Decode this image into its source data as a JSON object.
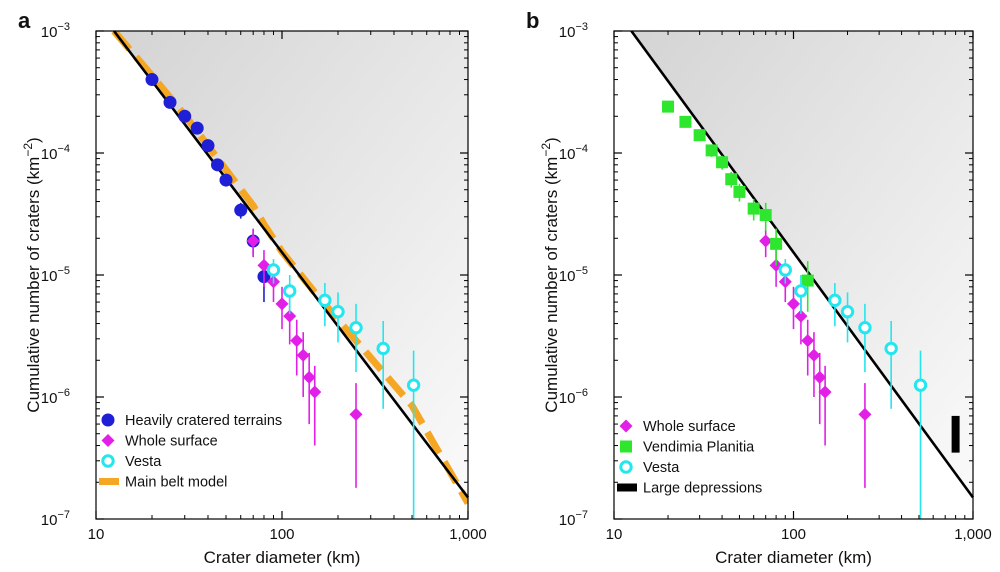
{
  "colors": {
    "heavily": "#1f1fd6",
    "whole": "#e11fe6",
    "vesta": "#23e6ee",
    "mainbelt": "#f5a623",
    "vendimia": "#2ee62e",
    "depressions": "#000000",
    "saturation": "#000000"
  },
  "chart_data": [
    {
      "type": "scatter",
      "panel_label": "a",
      "xlabel": "Crater diameter (km)",
      "ylabel": "Cumulative number of craters (km",
      "ylabel_sup": "−2",
      "ylabel_end": ")",
      "x_scale": "log",
      "y_scale": "log",
      "xlim": [
        10,
        1000
      ],
      "ylim": [
        1e-07,
        0.001
      ],
      "x_ticks": [
        10,
        100,
        1000
      ],
      "x_tick_labels": [
        "10",
        "100",
        "1,000"
      ],
      "y_ticks": [
        1e-07,
        1e-06,
        1e-05,
        0.0001,
        0.001
      ],
      "y_tick_mantissa": [
        "10",
        "10",
        "10",
        "10",
        "10"
      ],
      "y_tick_exponents": [
        "−7",
        "−6",
        "−5",
        "−4",
        "−3"
      ],
      "legend_position": "bottom-left",
      "saturation_line": {
        "x": [
          12.5,
          1000
        ],
        "y": [
          0.001,
          1.5e-07
        ]
      },
      "series": [
        {
          "name": "Heavily cratered terrains",
          "marker": "circle",
          "color_key": "heavily",
          "x": [
            20,
            25,
            30,
            35,
            40,
            45,
            50,
            60,
            70,
            80
          ],
          "y": [
            0.0004,
            0.00026,
            0.0002,
            0.00016,
            0.000115,
            8e-05,
            6e-05,
            3.4e-05,
            1.9e-05,
            9.7e-06
          ],
          "err_low": [
            0.00037,
            0.000245,
            0.000188,
            0.00015,
            0.000107,
            7.2e-05,
            5.4e-05,
            2.9e-05,
            1.45e-05,
            6e-06
          ],
          "err_high": [
            0.00043,
            0.000275,
            0.000212,
            0.00017,
            0.000123,
            8.8e-05,
            6.6e-05,
            3.9e-05,
            2.35e-05,
            1.3e-05
          ]
        },
        {
          "name": "Whole surface",
          "marker": "diamond",
          "color_key": "whole",
          "x": [
            70,
            80,
            90,
            100,
            110,
            120,
            130,
            140,
            150,
            250
          ],
          "y": [
            1.9e-05,
            1.2e-05,
            8.8e-06,
            5.8e-06,
            4.6e-06,
            2.9e-06,
            2.2e-06,
            1.45e-06,
            1.1e-06,
            7.2e-07
          ],
          "err_low": [
            1.4e-05,
            8e-06,
            6e-06,
            3.6e-06,
            2.7e-06,
            1.5e-06,
            1e-06,
            6e-07,
            4e-07,
            1.8e-07
          ],
          "err_high": [
            2.4e-05,
            1.6e-05,
            1.17e-05,
            8e-06,
            6.5e-06,
            4.3e-06,
            3.4e-06,
            2.3e-06,
            1.8e-06,
            1.3e-06
          ]
        },
        {
          "name": "Vesta",
          "marker": "ring",
          "color_key": "vesta",
          "x": [
            90,
            110,
            170,
            200,
            250,
            350,
            510
          ],
          "y": [
            1.1e-05,
            7.4e-06,
            6.2e-06,
            5e-06,
            3.7e-06,
            2.5e-06,
            1.25e-06
          ],
          "err_low": [
            8.5e-06,
            4.8e-06,
            3.8e-06,
            2.8e-06,
            1.6e-06,
            8e-07,
            1e-07
          ],
          "err_high": [
            1.35e-05,
            1e-05,
            8.6e-06,
            7.2e-06,
            5.8e-06,
            4.2e-06,
            2.4e-06
          ]
        },
        {
          "name": "Main belt model",
          "marker": "dashed-line",
          "color_key": "mainbelt",
          "x": [
            12.5,
            20,
            30,
            50,
            70,
            80,
            100,
            150,
            200,
            300,
            500,
            1000
          ],
          "y": [
            0.001,
            0.00043,
            0.000205,
            7.3e-05,
            3.7e-05,
            2.6e-05,
            1.55e-05,
            7.2e-06,
            4.3e-06,
            2.1e-06,
            8.5e-07,
            1.35e-07
          ]
        }
      ]
    },
    {
      "type": "scatter",
      "panel_label": "b",
      "xlabel": "Crater diameter (km)",
      "ylabel": "Cumulative number of craters (km",
      "ylabel_sup": "−2",
      "ylabel_end": ")",
      "x_scale": "log",
      "y_scale": "log",
      "xlim": [
        10,
        1000
      ],
      "ylim": [
        1e-07,
        0.001
      ],
      "x_ticks": [
        10,
        100,
        1000
      ],
      "x_tick_labels": [
        "10",
        "100",
        "1,000"
      ],
      "y_ticks": [
        1e-07,
        1e-06,
        1e-05,
        0.0001,
        0.001
      ],
      "y_tick_mantissa": [
        "10",
        "10",
        "10",
        "10",
        "10"
      ],
      "y_tick_exponents": [
        "−7",
        "−6",
        "−5",
        "−4",
        "−3"
      ],
      "legend_position": "bottom-left",
      "saturation_line": {
        "x": [
          12.5,
          1000
        ],
        "y": [
          0.001,
          1.5e-07
        ]
      },
      "series": [
        {
          "name": "Whole surface",
          "marker": "diamond",
          "color_key": "whole",
          "x": [
            70,
            80,
            90,
            100,
            110,
            120,
            130,
            140,
            150,
            250
          ],
          "y": [
            1.9e-05,
            1.2e-05,
            8.8e-06,
            5.8e-06,
            4.6e-06,
            2.9e-06,
            2.2e-06,
            1.45e-06,
            1.1e-06,
            7.2e-07
          ],
          "err_low": [
            1.4e-05,
            8e-06,
            6e-06,
            3.6e-06,
            2.7e-06,
            1.5e-06,
            1e-06,
            6e-07,
            4e-07,
            1.8e-07
          ],
          "err_high": [
            2.4e-05,
            1.6e-05,
            1.17e-05,
            8e-06,
            6.5e-06,
            4.3e-06,
            3.4e-06,
            2.3e-06,
            1.8e-06,
            1.3e-06
          ]
        },
        {
          "name": "Vendimia Planitia",
          "marker": "square",
          "color_key": "vendimia",
          "x": [
            20,
            25,
            30,
            35,
            40,
            45,
            50,
            60,
            70,
            80,
            120
          ],
          "y": [
            0.00024,
            0.00018,
            0.00014,
            0.000105,
            8.4e-05,
            6.1e-05,
            4.8e-05,
            3.5e-05,
            3.1e-05,
            1.8e-05,
            9e-06
          ],
          "err_low": [
            0.00022,
            0.000162,
            0.000126,
            9.3e-05,
            7.3e-05,
            5.2e-05,
            4e-05,
            2.8e-05,
            2.3e-05,
            1.2e-05,
            5e-06
          ],
          "err_high": [
            0.00026,
            0.000198,
            0.000154,
            0.000117,
            9.5e-05,
            7e-05,
            5.6e-05,
            4.2e-05,
            3.9e-05,
            2.4e-05,
            1.3e-05
          ]
        },
        {
          "name": "Vesta",
          "marker": "ring",
          "color_key": "vesta",
          "x": [
            90,
            110,
            170,
            200,
            250,
            350,
            510
          ],
          "y": [
            1.1e-05,
            7.4e-06,
            6.2e-06,
            5e-06,
            3.7e-06,
            2.5e-06,
            1.25e-06
          ],
          "err_low": [
            8.5e-06,
            4.8e-06,
            3.8e-06,
            2.8e-06,
            1.6e-06,
            8e-07,
            1e-07
          ],
          "err_high": [
            1.35e-05,
            1e-05,
            8.6e-06,
            7.2e-06,
            5.8e-06,
            4.2e-06,
            2.4e-06
          ]
        },
        {
          "name": "Large depressions",
          "marker": "bar",
          "color_key": "depressions",
          "x": [
            800
          ],
          "y_low": [
            3.5e-07
          ],
          "y_high": [
            7e-07
          ]
        }
      ]
    }
  ]
}
